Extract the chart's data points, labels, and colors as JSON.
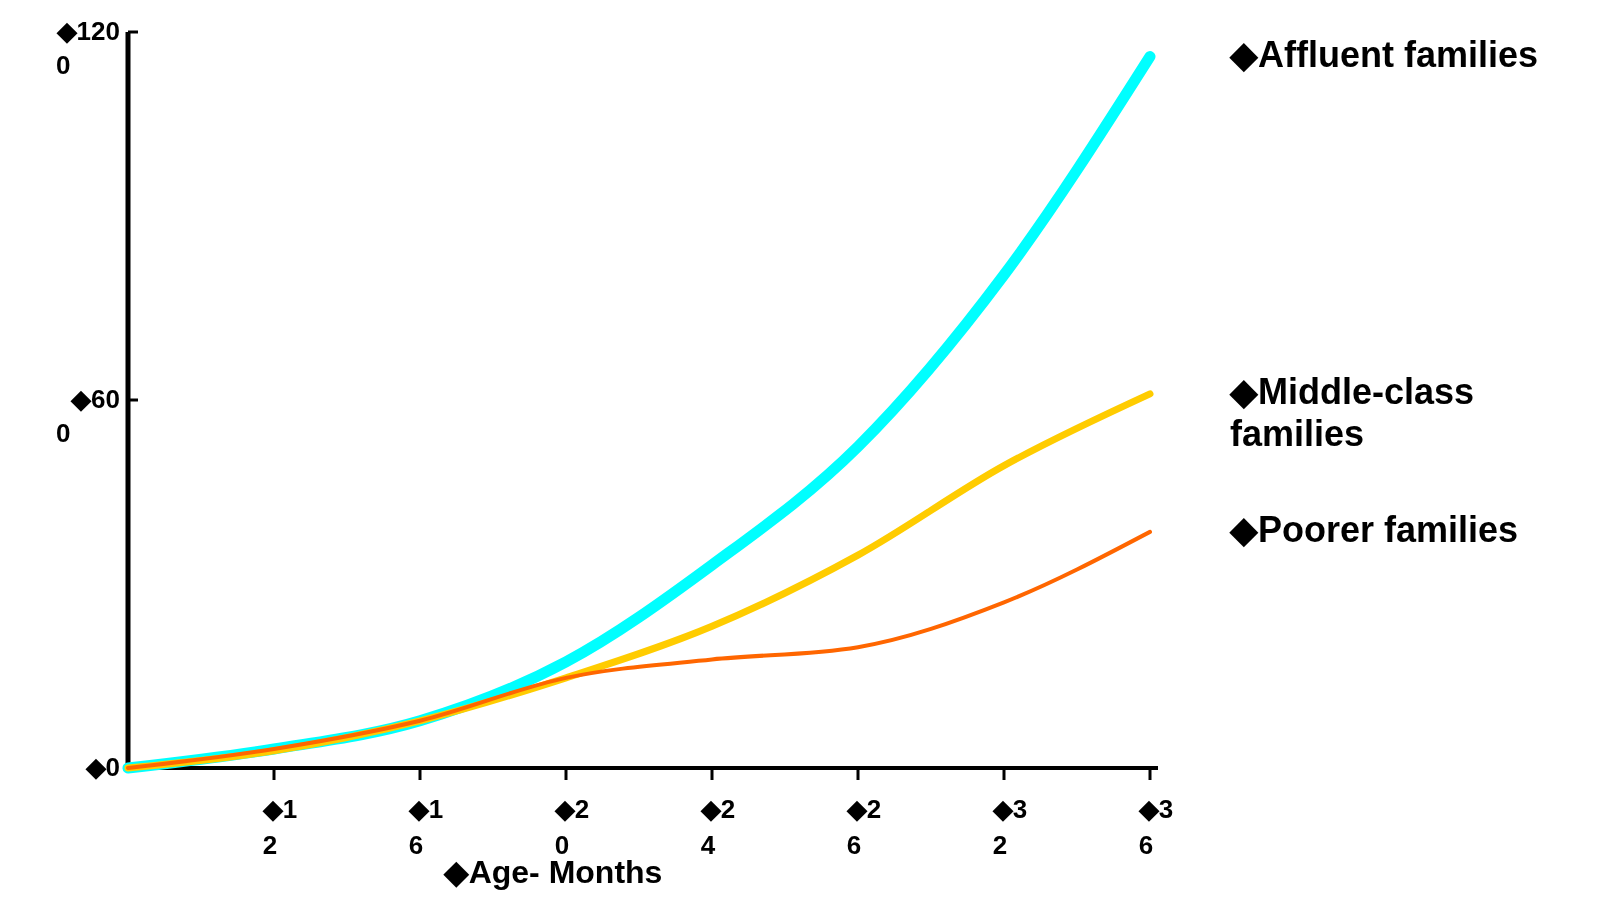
{
  "chart_data": {
    "type": "line",
    "xlabel": "◆Age- Months",
    "categories": [
      null,
      "◆12",
      "◆16",
      "◆20",
      "◆24",
      "◆26",
      "◆32",
      "◆36"
    ],
    "ylim": [
      0,
      1200
    ],
    "yticks": [
      {
        "value": 0,
        "label": "◆0"
      },
      {
        "value": 600,
        "label": "◆600"
      },
      {
        "value": 1200,
        "label": "◆1200"
      }
    ],
    "series": [
      {
        "name": "◆Affluent families",
        "color": "#00ffff",
        "values": [
          0,
          31,
          77,
          173,
          331,
          524,
          804,
          1160
        ]
      },
      {
        "name": "◆Middle-class families",
        "color": "#ffcc00",
        "values": [
          0,
          28,
          77,
          147,
          231,
          347,
          493,
          610
        ]
      },
      {
        "name": "◆Poorer families",
        "color": "#ff6600",
        "values": [
          0,
          31,
          77,
          147,
          177,
          197,
          270,
          385
        ]
      }
    ],
    "legend": "right"
  }
}
